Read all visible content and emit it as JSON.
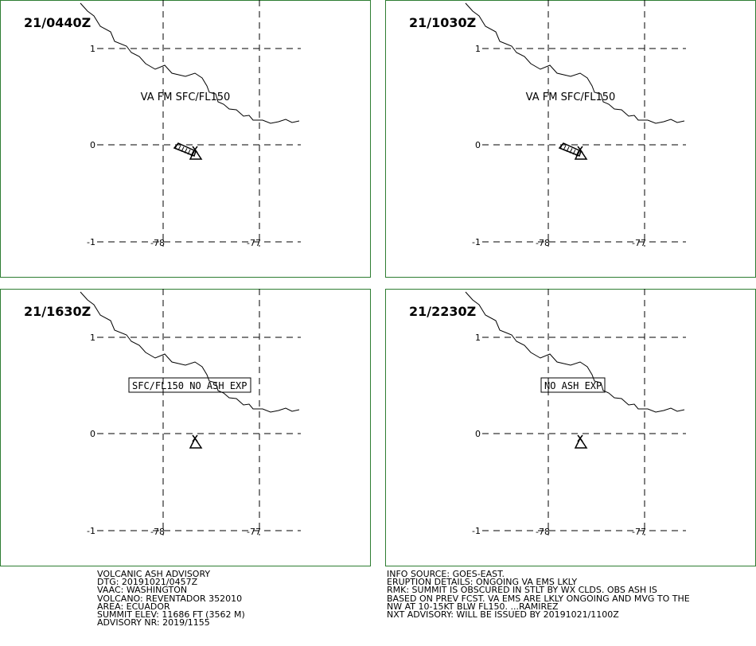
{
  "frame_color": "#2e7d32",
  "panels": [
    {
      "time": "21/0440Z",
      "text": "VA FM SFC/FL150",
      "boxed": false,
      "ash": true
    },
    {
      "time": "21/1030Z",
      "text": "VA FM SFC/FL150",
      "boxed": false,
      "ash": true
    },
    {
      "time": "21/1630Z",
      "text": "SFC/FL150 NO ASH EXP",
      "boxed": true,
      "ash": false
    },
    {
      "time": "21/2230Z",
      "text": "NO ASH EXP",
      "boxed": true,
      "ash": false
    }
  ],
  "grid": {
    "latitudes": [
      "1",
      "0",
      "-1"
    ],
    "longitudes": [
      "-78",
      "-77"
    ]
  },
  "volcano_symbol": "volcano-triangle-icon",
  "advisory_left": [
    "VOLCANIC ASH ADVISORY",
    "DTG: 20191021/0457Z",
    "VAAC: WASHINGTON",
    "VOLCANO: REVENTADOR 352010",
    "AREA: ECUADOR",
    "SUMMIT ELEV: 11686 FT (3562 M)",
    "ADVISORY NR: 2019/1155"
  ],
  "advisory_right": [
    "INFO SOURCE: GOES-EAST.",
    "ERUPTION DETAILS: ONGOING VA EMS LKLY",
    "RMK: SUMMIT IS OBSCURED IN STLT BY WX CLDS. OBS ASH IS",
    "BASED ON PREV FCST. VA EMS ARE LKLY ONGOING AND MVG TO THE",
    "NW AT 10-15KT BLW FL150. ...RAMIREZ",
    "NXT ADVISORY: WILL BE ISSUED BY 20191021/1100Z"
  ]
}
